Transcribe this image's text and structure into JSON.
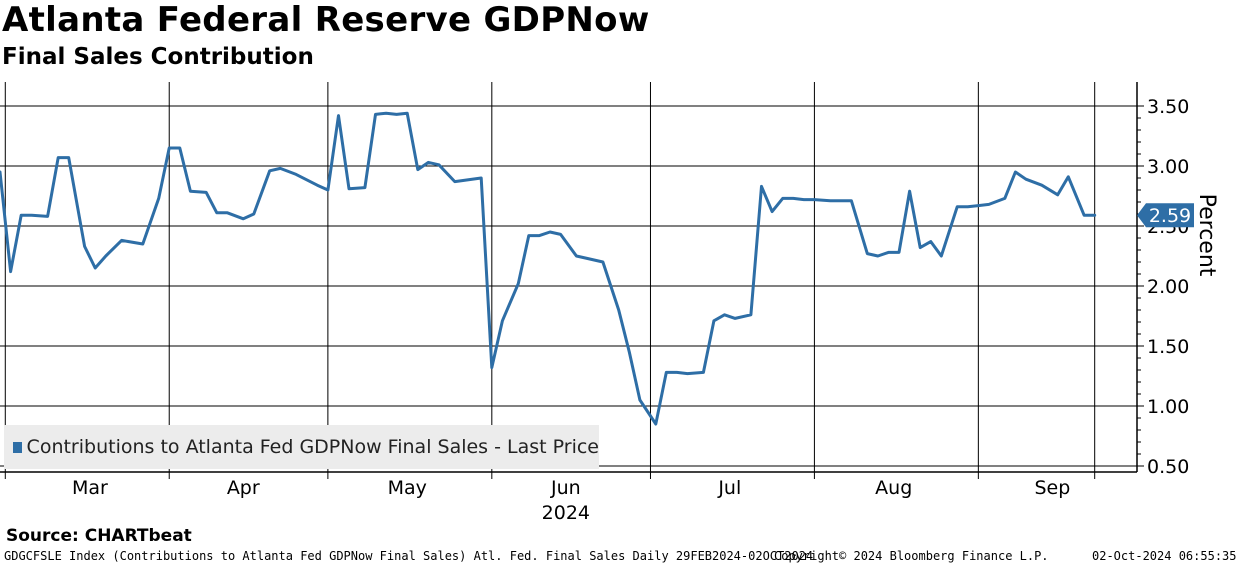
{
  "title": "Atlanta Federal Reserve GDPNow",
  "subtitle": "Final Sales Contribution",
  "source": "Source:  CHARTbeat",
  "footer": {
    "left": "GDGCFSLE Index (Contributions to Atlanta Fed GDPNow Final Sales) Atl. Fed. Final Sales  Daily 29FEB2024-02OCT2024",
    "middle": "Copyright© 2024 Bloomberg Finance L.P.",
    "right": "02-Oct-2024 06:55:35"
  },
  "colors": {
    "line": "#2e6ea6",
    "grid": "#000000",
    "label_bg": "#2e6ea6"
  },
  "chart_data": {
    "type": "line",
    "title": "Atlanta Federal Reserve GDPNow",
    "subtitle": "Final Sales Contribution",
    "ylabel": "Percent",
    "xlabel": "2024",
    "ylim": [
      0.45,
      3.7
    ],
    "yticks": [
      0.5,
      1.0,
      1.5,
      2.0,
      2.5,
      3.0,
      3.5
    ],
    "ytick_labels": [
      "0.50",
      "1.00",
      "1.50",
      "2.00",
      "2.50",
      "3.00",
      "3.50"
    ],
    "xlim": [
      0,
      215
    ],
    "month_ticks": [
      {
        "label": "Mar",
        "x": 1,
        "mid": 17
      },
      {
        "label": "Apr",
        "x": 32,
        "mid": 46
      },
      {
        "label": "May",
        "x": 62,
        "mid": 77
      },
      {
        "label": "Jun",
        "x": 93,
        "mid": 107
      },
      {
        "label": "Jul",
        "x": 123,
        "mid": 138
      },
      {
        "label": "Aug",
        "x": 154,
        "mid": 169
      },
      {
        "label": "Sep",
        "x": 185,
        "mid": 199
      },
      {
        "label": "",
        "x": 207,
        "mid": 0
      }
    ],
    "year_label": "2024",
    "grid": true,
    "last_value_label": "2.59",
    "legend": "Contributions to Atlanta Fed GDPNow Final Sales - Last Price",
    "series": [
      {
        "name": "Contributions to Atlanta Fed GDPNow Final Sales - Last Price",
        "x": [
          0,
          2,
          4,
          6,
          9,
          11,
          13,
          16,
          18,
          20,
          23,
          27,
          30,
          32,
          34,
          36,
          39,
          41,
          43,
          46,
          48,
          51,
          53,
          56,
          60,
          62,
          64,
          66,
          69,
          71,
          73,
          75,
          77,
          79,
          81,
          83,
          86,
          91,
          93,
          95,
          98,
          100,
          102,
          104,
          106,
          109,
          111,
          114,
          117,
          119,
          121,
          124,
          126,
          128,
          130,
          133,
          135,
          137,
          139,
          142,
          144,
          146,
          148,
          150,
          152,
          154,
          157,
          159,
          161,
          164,
          166,
          168,
          170,
          172,
          174,
          176,
          178,
          181,
          183,
          185,
          187,
          190,
          192,
          194,
          197,
          200,
          202,
          205,
          207
        ],
        "values": [
          2.95,
          2.12,
          2.59,
          2.59,
          2.58,
          3.07,
          3.07,
          2.33,
          2.15,
          2.25,
          2.38,
          2.35,
          2.73,
          3.15,
          3.15,
          2.79,
          2.78,
          2.61,
          2.61,
          2.56,
          2.6,
          2.96,
          2.98,
          2.93,
          2.84,
          2.8,
          3.42,
          2.81,
          2.82,
          3.43,
          3.44,
          3.43,
          3.44,
          2.97,
          3.03,
          3.01,
          2.87,
          2.9,
          1.32,
          1.71,
          2.02,
          2.42,
          2.42,
          2.45,
          2.43,
          2.25,
          2.23,
          2.2,
          1.8,
          1.45,
          1.05,
          0.85,
          1.28,
          1.28,
          1.27,
          1.28,
          1.71,
          1.76,
          1.73,
          1.76,
          2.83,
          2.62,
          2.73,
          2.73,
          2.72,
          2.72,
          2.71,
          2.71,
          2.71,
          2.27,
          2.25,
          2.28,
          2.28,
          2.79,
          2.32,
          2.37,
          2.25,
          2.66,
          2.66,
          2.67,
          2.68,
          2.73,
          2.95,
          2.89,
          2.84,
          2.76,
          2.91,
          2.59,
          2.59
        ]
      }
    ]
  }
}
